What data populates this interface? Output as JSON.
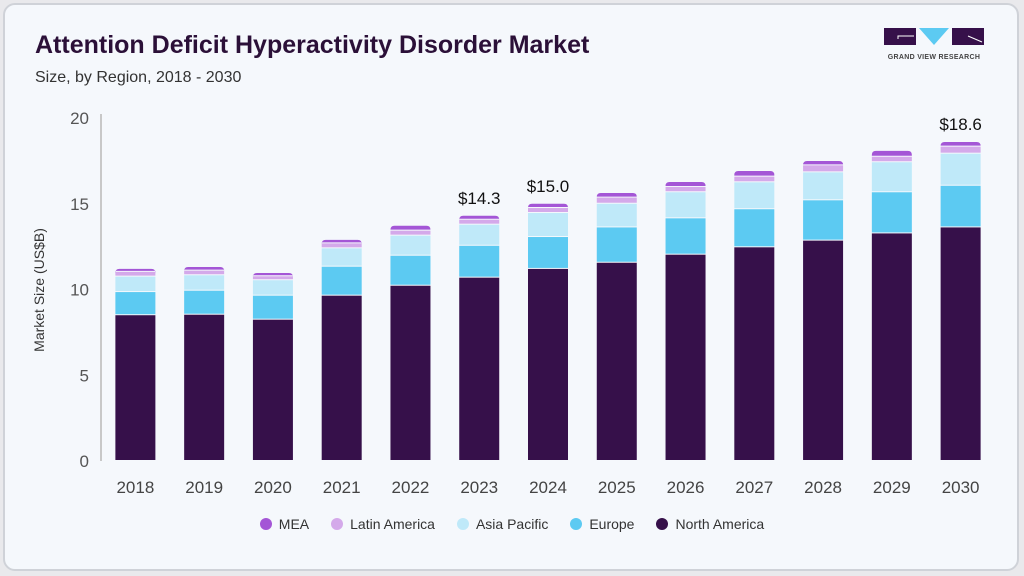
{
  "header": {
    "title": "Attention Deficit Hyperactivity Disorder Market",
    "subtitle": "Size, by Region, 2018 - 2030"
  },
  "logo": {
    "text": "GRAND VIEW RESEARCH"
  },
  "chart_data": {
    "type": "bar",
    "stacked": true,
    "title": "Attention Deficit Hyperactivity Disorder Market",
    "subtitle": "Size, by Region, 2018 - 2030",
    "xlabel": "",
    "ylabel": "Market Size (US$B)",
    "ylim": [
      0,
      20
    ],
    "yticks": [
      0,
      5,
      10,
      15,
      20
    ],
    "grid": false,
    "legend_position": "bottom",
    "categories": [
      "2018",
      "2019",
      "2020",
      "2021",
      "2022",
      "2023",
      "2024",
      "2025",
      "2026",
      "2027",
      "2028",
      "2029",
      "2030"
    ],
    "series": [
      {
        "name": "North America",
        "color": "#36104a",
        "values": [
          8.5,
          8.53,
          8.24,
          9.64,
          10.22,
          10.69,
          11.2,
          11.56,
          12.03,
          12.46,
          12.85,
          13.27,
          13.62
        ]
      },
      {
        "name": "Europe",
        "color": "#5ccaf2",
        "values": [
          1.35,
          1.4,
          1.4,
          1.69,
          1.75,
          1.86,
          1.86,
          2.06,
          2.12,
          2.22,
          2.35,
          2.4,
          2.43
        ]
      },
      {
        "name": "Asia Pacific",
        "color": "#bfe9f9",
        "values": [
          0.9,
          0.9,
          0.9,
          1.07,
          1.17,
          1.23,
          1.4,
          1.38,
          1.52,
          1.57,
          1.63,
          1.75,
          1.87
        ]
      },
      {
        "name": "Latin America",
        "color": "#d4a9ea",
        "values": [
          0.28,
          0.27,
          0.23,
          0.29,
          0.29,
          0.29,
          0.29,
          0.36,
          0.31,
          0.33,
          0.41,
          0.32,
          0.41
        ]
      },
      {
        "name": "MEA",
        "color": "#a456d6",
        "values": [
          0.17,
          0.21,
          0.19,
          0.2,
          0.29,
          0.23,
          0.25,
          0.27,
          0.29,
          0.33,
          0.25,
          0.34,
          0.27
        ]
      }
    ],
    "annotations": [
      {
        "category": "2023",
        "text": "$14.3"
      },
      {
        "category": "2024",
        "text": "$15.0"
      },
      {
        "category": "2030",
        "text": "$18.6"
      }
    ],
    "legend_order": [
      "MEA",
      "Latin America",
      "Asia Pacific",
      "Europe",
      "North America"
    ]
  }
}
